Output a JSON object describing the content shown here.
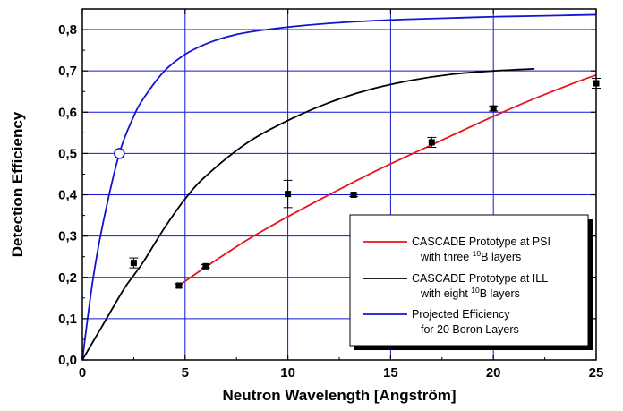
{
  "chart_data": {
    "type": "line",
    "title": "",
    "xlabel": "Neutron Wavelength [Angström]",
    "ylabel": "Detection Efficiency",
    "xlim": [
      0,
      25
    ],
    "ylim": [
      0,
      0.85
    ],
    "xticks": [
      0,
      5,
      10,
      15,
      20,
      25
    ],
    "xtick_labels": [
      "0",
      "5",
      "10",
      "15",
      "20",
      "25"
    ],
    "yticks": [
      0.0,
      0.1,
      0.2,
      0.3,
      0.4,
      0.5,
      0.6,
      0.7,
      0.8
    ],
    "ytick_labels": [
      "0,0",
      "0,1",
      "0,2",
      "0,3",
      "0,4",
      "0,5",
      "0,6",
      "0,7",
      "0,8"
    ],
    "grid": true,
    "legend_position": "bottom-right",
    "series": [
      {
        "name": "CASCADE Prototype at PSI with three 10B layers",
        "legend_lines": [
          "CASCADE Prototype at PSI",
          "with three ",
          "10",
          "B layers"
        ],
        "color": "#e8141b",
        "x": [
          4.7,
          6,
          8,
          10,
          12,
          14,
          16,
          18,
          20,
          22,
          24,
          25
        ],
        "y": [
          0.18,
          0.225,
          0.29,
          0.347,
          0.4,
          0.451,
          0.498,
          0.544,
          0.59,
          0.633,
          0.672,
          0.69
        ]
      },
      {
        "name": "CASCADE Prototype at ILL with eight 10B layers",
        "legend_lines": [
          "CASCADE Prototype at ILL",
          "with eight ",
          "10",
          "B layers"
        ],
        "color": "#000000",
        "x": [
          0,
          1,
          2,
          2.5,
          3,
          4,
          5,
          6,
          8,
          10,
          12,
          14,
          16,
          18,
          20,
          22
        ],
        "y": [
          0,
          0.085,
          0.17,
          0.205,
          0.24,
          0.32,
          0.39,
          0.445,
          0.525,
          0.58,
          0.623,
          0.655,
          0.677,
          0.692,
          0.7,
          0.705
        ]
      },
      {
        "name": "Projected Efficiency for 20 Boron Layers",
        "legend_lines": [
          "Projected Efficiency",
          "for 20 Boron Layers"
        ],
        "color": "#1414d2",
        "x": [
          0,
          0.5,
          1,
          1.8,
          2.5,
          3,
          4,
          5,
          6,
          7,
          8,
          10,
          12,
          14,
          16,
          18,
          20,
          22,
          25
        ],
        "y": [
          0,
          0.19,
          0.33,
          0.5,
          0.59,
          0.635,
          0.7,
          0.74,
          0.765,
          0.782,
          0.793,
          0.806,
          0.815,
          0.821,
          0.825,
          0.828,
          0.831,
          0.833,
          0.836
        ]
      }
    ],
    "data_points": [
      {
        "x": 2.5,
        "y": 0.235,
        "yerr": 0.012
      },
      {
        "x": 4.7,
        "y": 0.18,
        "yerr": 0.004
      },
      {
        "x": 6.0,
        "y": 0.227,
        "yerr": 0.004
      },
      {
        "x": 10.0,
        "y": 0.402,
        "yerr": 0.033
      },
      {
        "x": 13.2,
        "y": 0.4,
        "yerr": 0.004
      },
      {
        "x": 17.0,
        "y": 0.527,
        "yerr": 0.012
      },
      {
        "x": 20.0,
        "y": 0.609,
        "yerr": 0.006
      },
      {
        "x": 25.0,
        "y": 0.67,
        "yerr": 0.012
      }
    ],
    "marked_point": {
      "x": 1.8,
      "y": 0.5
    }
  }
}
